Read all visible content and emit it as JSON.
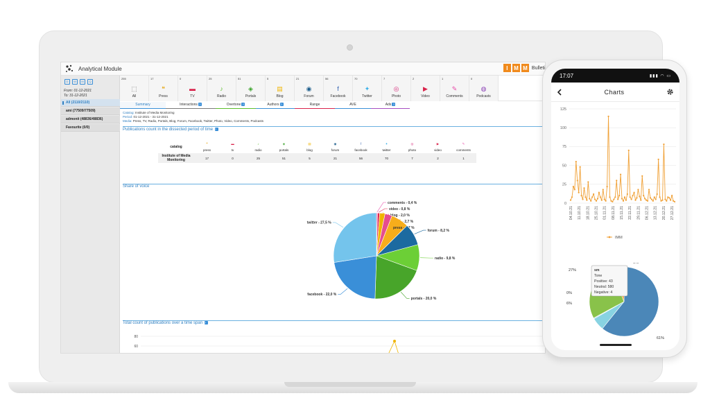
{
  "app": {
    "title": "Analytical Module",
    "brand_letters": [
      "I",
      "M",
      "M"
    ],
    "brand_text": "Bulleti"
  },
  "sidebar": {
    "date_icons": [
      "D",
      "W",
      "M",
      "Q"
    ],
    "from": "From: 01-12-2021",
    "to": "To: 31-12-2021",
    "items": [
      {
        "label": "All (2110/2110)",
        "active": true
      },
      {
        "label": "ami (77509/77509)",
        "active": false
      },
      {
        "label": "admonit (48836/48836)",
        "active": false
      },
      {
        "label": "Favourite (0/0)",
        "active": false
      }
    ]
  },
  "channels": [
    {
      "count": "255",
      "label": "All",
      "icon": "grid-icon",
      "glyph": "⬚",
      "color": "#777777"
    },
    {
      "count": "17",
      "label": "Press",
      "icon": "quote-icon",
      "glyph": "❝",
      "color": "#e6a817"
    },
    {
      "count": "0",
      "label": "TV",
      "icon": "tv-icon",
      "glyph": "▬",
      "color": "#d9234b"
    },
    {
      "count": "25",
      "label": "Radio",
      "icon": "microphone-icon",
      "glyph": "♪",
      "color": "#5bbd2b"
    },
    {
      "count": "51",
      "label": "Portals",
      "icon": "cube-icon",
      "glyph": "◈",
      "color": "#3aa32a"
    },
    {
      "count": "5",
      "label": "Blog",
      "icon": "blog-icon",
      "glyph": "▤",
      "color": "#f0b400"
    },
    {
      "count": "21",
      "label": "Forum",
      "icon": "chat-icon",
      "glyph": "◉",
      "color": "#1c5d8c"
    },
    {
      "count": "56",
      "label": "Facebook",
      "icon": "facebook-icon",
      "glyph": "f",
      "color": "#2f5fb0"
    },
    {
      "count": "70",
      "label": "Twitter",
      "icon": "twitter-icon",
      "glyph": "✦",
      "color": "#3ab0e8"
    },
    {
      "count": "7",
      "label": "Photo",
      "icon": "camera-icon",
      "glyph": "◎",
      "color": "#d6297a"
    },
    {
      "count": "2",
      "label": "Video",
      "icon": "play-icon",
      "glyph": "▶",
      "color": "#d9234b"
    },
    {
      "count": "1",
      "label": "Comments",
      "icon": "eraser-icon",
      "glyph": "✎",
      "color": "#e84aa8"
    },
    {
      "count": "0",
      "label": "Podcasts",
      "icon": "podcast-icon",
      "glyph": "◍",
      "color": "#8a3fb5"
    }
  ],
  "tabs": [
    {
      "label": "Summary",
      "color": "#3a8fd8",
      "badge": false,
      "width": 66
    },
    {
      "label": "Interactions",
      "color": "#7a7a7a",
      "badge": true,
      "width": 72
    },
    {
      "label": "Overtone",
      "color": "#5bbd2b",
      "badge": true,
      "width": 58
    },
    {
      "label": "Authors",
      "color": "#3a8fd8",
      "badge": true,
      "width": 56
    },
    {
      "label": "Range",
      "color": "#d9234b",
      "badge": false,
      "width": 58
    },
    {
      "label": "AVE",
      "color": "#3a8fd8",
      "badge": false,
      "width": 52
    },
    {
      "label": "Ads",
      "color": "#a64ec2",
      "badge": true,
      "width": 56
    }
  ],
  "info": {
    "catalog_key": "Catalog:",
    "catalog_value": "Institute of Media Monitoring",
    "period_key": "Period:",
    "period_value": "01-12-2021 - 31-12-2021",
    "media_key": "Media:",
    "media_value": "Press, TV, Radio, Portals, Blog, Forum, Facebook, Twitter, Photo, Video, Comments, Podcasts"
  },
  "publications": {
    "title": "Publications count in the dissected period of time",
    "catalog_header": "catalog",
    "row_name": "Institute of Media Monitoring",
    "columns": [
      {
        "label": "press",
        "value": "17",
        "glyph": "❝",
        "color": "#e6a817",
        "icon": "quote-icon"
      },
      {
        "label": "tv",
        "value": "0",
        "glyph": "▬",
        "color": "#d9234b",
        "icon": "tv-icon"
      },
      {
        "label": "radio",
        "value": "25",
        "glyph": "♪",
        "color": "#5bbd2b",
        "icon": "microphone-icon"
      },
      {
        "label": "portals",
        "value": "51",
        "glyph": "◈",
        "color": "#3aa32a",
        "icon": "cube-icon"
      },
      {
        "label": "blog",
        "value": "5",
        "glyph": "▤",
        "color": "#f0b400",
        "icon": "blog-icon"
      },
      {
        "label": "forum",
        "value": "21",
        "glyph": "◉",
        "color": "#1c5d8c",
        "icon": "chat-icon"
      },
      {
        "label": "facebook",
        "value": "56",
        "glyph": "f",
        "color": "#2f5fb0",
        "icon": "facebook-icon"
      },
      {
        "label": "twitter",
        "value": "70",
        "glyph": "✦",
        "color": "#3ab0e8",
        "icon": "twitter-icon"
      },
      {
        "label": "photo",
        "value": "7",
        "glyph": "◎",
        "color": "#d6297a",
        "icon": "camera-icon"
      },
      {
        "label": "video",
        "value": "2",
        "glyph": "▶",
        "color": "#d9234b",
        "icon": "play-icon"
      },
      {
        "label": "comments",
        "value": "1",
        "glyph": "✎",
        "color": "#e84aa8",
        "icon": "eraser-icon"
      }
    ]
  },
  "share_of_voice": {
    "title": "Share of voice"
  },
  "timeline": {
    "title": "Total count of publications over a time span",
    "y_ticks": [
      "80",
      "60"
    ]
  },
  "chart_data": [
    {
      "type": "pie",
      "title": "Share of voice",
      "slices": [
        {
          "label": "comments - 0,4 %",
          "value": 0.4,
          "color": "#e84aa8"
        },
        {
          "label": "video - 0,8 %",
          "value": 0.8,
          "color": "#e0244c"
        },
        {
          "label": "blog - 2,0 %",
          "value": 2.0,
          "color": "#f0b400"
        },
        {
          "label": "photo - 2,7 %",
          "value": 2.7,
          "color": "#e64d8e"
        },
        {
          "label": "press - 6,7 %",
          "value": 6.7,
          "color": "#f7ad1b"
        },
        {
          "label": "forum - 8,2 %",
          "value": 8.2,
          "color": "#1c6aa0"
        },
        {
          "label": "radio - 9,8 %",
          "value": 9.8,
          "color": "#6ccf36"
        },
        {
          "label": "portals - 20,0 %",
          "value": 20.0,
          "color": "#48a52a"
        },
        {
          "label": "facebook - 22,0 %",
          "value": 22.0,
          "color": "#3a8fd8"
        },
        {
          "label": "twitter - 27,5 %",
          "value": 27.5,
          "color": "#74c4ec"
        }
      ]
    },
    {
      "type": "line",
      "title": "",
      "series": [
        {
          "name": "IMM",
          "color": "#f0a035",
          "values": [
            4,
            8,
            22,
            18,
            55,
            30,
            14,
            48,
            10,
            5,
            20,
            8,
            4,
            28,
            6,
            3,
            8,
            12,
            5,
            3,
            6,
            14,
            8,
            4,
            18,
            5,
            3,
            22,
            115,
            8,
            3,
            2,
            5,
            8,
            30,
            5,
            10,
            38,
            6,
            3,
            8,
            4,
            12,
            70,
            8,
            5,
            10,
            14,
            4,
            7,
            18,
            9,
            4,
            36,
            10,
            6,
            4,
            3,
            18,
            7,
            5,
            3,
            8,
            5,
            12,
            58,
            8,
            3,
            4,
            78,
            5,
            3,
            8,
            7,
            4,
            10,
            3,
            2
          ]
        }
      ],
      "x_ticks": [
        "04.10.21",
        "11.10.21",
        "18.10.21",
        "25.10.21",
        "01.11.21",
        "08.11.21",
        "15.11.21",
        "22.11.21",
        "29.11.21",
        "06.12.21",
        "13.12.21",
        "20.12.21",
        "27.12.21"
      ],
      "y_ticks": [
        "125",
        "100",
        "75",
        "50",
        "25",
        "0"
      ],
      "ylim": [
        0,
        125
      ]
    },
    {
      "type": "pie",
      "title": "",
      "slices": [
        {
          "label": "61%",
          "value": 61,
          "color": "#4b87b8"
        },
        {
          "label": "6%",
          "value": 6,
          "color": "#88d3e2"
        },
        {
          "label": "0%",
          "value": 0.4,
          "color": "#9fc9e3"
        },
        {
          "label": "27%",
          "value": 27,
          "color": "#89c24a"
        },
        {
          "label": "6%",
          "value": 6,
          "color": "#f0a035"
        }
      ],
      "tooltip": {
        "name": "sm",
        "tone": "Tone",
        "positive": "Positive: 43",
        "neutral": "Neutral: 580",
        "negative": "Negative: 4"
      }
    }
  ],
  "phone": {
    "time": "17:07",
    "title": "Charts",
    "legend": "IMM"
  }
}
